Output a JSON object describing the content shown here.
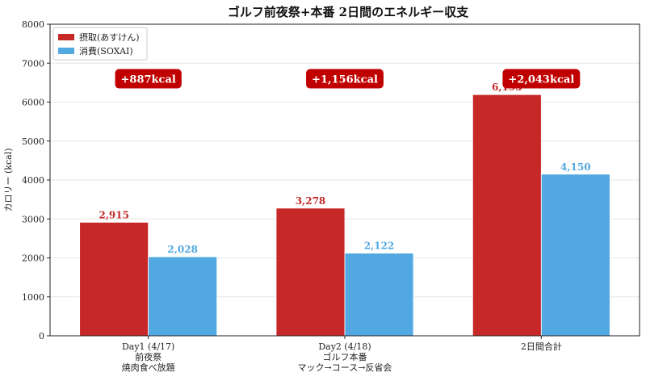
{
  "chart_data": {
    "type": "bar",
    "title": "ゴルフ前夜祭+本番 2日間のエネルギー収支",
    "ylabel": "カロリー (kcal)",
    "xlabel": "",
    "ylim": [
      0,
      8000
    ],
    "yticks": [
      0,
      1000,
      2000,
      3000,
      4000,
      5000,
      6000,
      7000,
      8000
    ],
    "grid": "horizontal",
    "legend_position": "top-left",
    "categories": [
      [
        "Day1 (4/17)",
        "前夜祭",
        "焼肉食べ放題"
      ],
      [
        "Day2 (4/18)",
        "ゴルフ本番",
        "マック→コース→反省会"
      ],
      [
        "2日間合計"
      ]
    ],
    "series": [
      {
        "name": "摂取(あすけん)",
        "color": "#c62828",
        "values": [
          2915,
          3278,
          6193
        ],
        "labels": [
          "2,915",
          "3,278",
          "6,193"
        ]
      },
      {
        "name": "消費(SOXAI)",
        "color": "#52a8e0",
        "values": [
          2028,
          2122,
          4150
        ],
        "labels": [
          "2,028",
          "2,122",
          "4,150"
        ]
      }
    ],
    "annotations": [
      {
        "category": 0,
        "text": "+887kcal",
        "y": 6600
      },
      {
        "category": 1,
        "text": "+1,156kcal",
        "y": 6600
      },
      {
        "category": 2,
        "text": "+2,043kcal",
        "y": 6600
      }
    ],
    "annotation_color": "#c00000"
  }
}
